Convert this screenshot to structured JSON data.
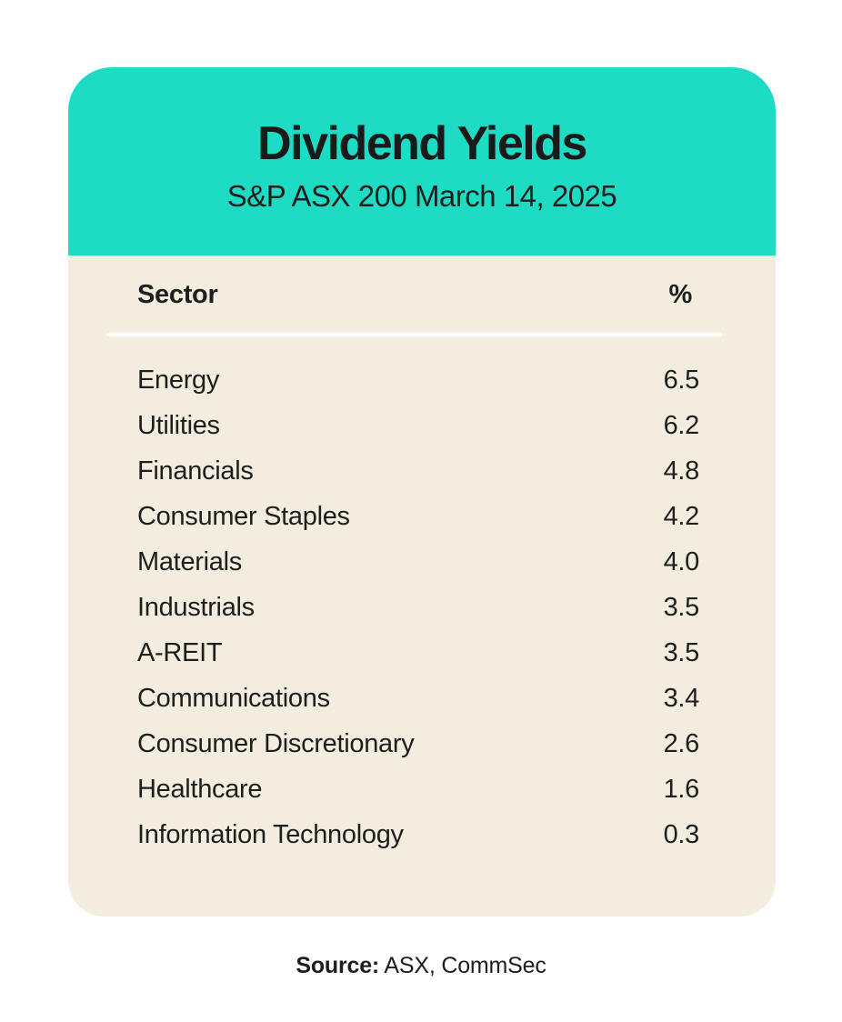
{
  "chart_data": {
    "type": "table",
    "title": "Dividend Yields",
    "subtitle": "S&P ASX 200 March 14, 2025",
    "columns": [
      "Sector",
      "%"
    ],
    "categories": [
      "Energy",
      "Utilities",
      "Financials",
      "Consumer Staples",
      "Materials",
      "Industrials",
      "A-REIT",
      "Communications",
      "Consumer Discretionary",
      "Healthcare",
      "Information Technology"
    ],
    "values": [
      6.5,
      6.2,
      4.8,
      4.2,
      4.0,
      3.5,
      3.5,
      3.4,
      2.6,
      1.6,
      0.3
    ],
    "source": "ASX, CommSec"
  },
  "header": {
    "title": "Dividend Yields",
    "subtitle": "S&P ASX 200 March 14, 2025"
  },
  "table": {
    "col_sector": "Sector",
    "col_percent": "%",
    "rows": [
      {
        "sector": "Energy",
        "value": "6.5"
      },
      {
        "sector": "Utilities",
        "value": "6.2"
      },
      {
        "sector": "Financials",
        "value": "4.8"
      },
      {
        "sector": "Consumer Staples",
        "value": "4.2"
      },
      {
        "sector": "Materials",
        "value": "4.0"
      },
      {
        "sector": "Industrials",
        "value": "3.5"
      },
      {
        "sector": "A-REIT",
        "value": "3.5"
      },
      {
        "sector": "Communications",
        "value": "3.4"
      },
      {
        "sector": "Consumer Discretionary",
        "value": "2.6"
      },
      {
        "sector": "Healthcare",
        "value": "1.6"
      },
      {
        "sector": "Information Technology",
        "value": "0.3"
      }
    ]
  },
  "footer": {
    "source_label": "Source:",
    "source_value": "ASX, CommSec"
  },
  "colors": {
    "header_teal": "#1EDCC4",
    "body_cream": "#F3EDDF",
    "text": "#1E1E1E",
    "divider": "#FFFFFF",
    "page_bg": "#FFFFFF"
  }
}
